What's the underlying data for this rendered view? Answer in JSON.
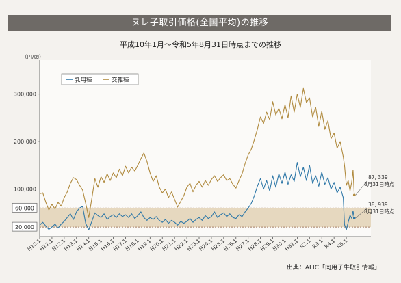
{
  "header": {
    "title": "ヌレ子取引価格(全国平均)の推移",
    "subtitle": "平成10年1月～令和5年8月31日時点までの推移"
  },
  "footer": {
    "source": "出典：ALIC「肉用子牛取引情報」"
  },
  "colors": {
    "nyuyoshu": "#2f78a8",
    "kozasshu": "#b08a3e",
    "band_fill": "#e6d8bf",
    "band_line": "#8a5a3a"
  },
  "chart_data": {
    "type": "line",
    "ylabel": "（円/頭）",
    "ylim": [
      0,
      360000
    ],
    "yticks": [
      {
        "value": 300000,
        "label": "300,000"
      },
      {
        "value": 200000,
        "label": "200,000"
      },
      {
        "value": 100000,
        "label": "100,000"
      }
    ],
    "boxed_yticks": [
      {
        "value": 60000,
        "label": "60,000"
      },
      {
        "value": 20000,
        "label": "20,000"
      }
    ],
    "band": {
      "from": 20000,
      "to": 60000
    },
    "xlim": [
      1998.0,
      2024.0
    ],
    "x_ticks": [
      {
        "x": 1998.0,
        "label": "H10.1"
      },
      {
        "x": 1999.0,
        "label": "H11.1"
      },
      {
        "x": 2000.0,
        "label": "H12.1"
      },
      {
        "x": 2001.0,
        "label": "H13.1"
      },
      {
        "x": 2002.0,
        "label": "H14.1"
      },
      {
        "x": 2003.0,
        "label": "H15.1"
      },
      {
        "x": 2004.0,
        "label": "H16.1"
      },
      {
        "x": 2005.0,
        "label": "H17.1"
      },
      {
        "x": 2006.0,
        "label": "H18.1"
      },
      {
        "x": 2007.0,
        "label": "H19.1"
      },
      {
        "x": 2008.0,
        "label": "H20.1"
      },
      {
        "x": 2009.0,
        "label": "H21.1"
      },
      {
        "x": 2010.0,
        "label": "H22.1"
      },
      {
        "x": 2011.0,
        "label": "H23.1"
      },
      {
        "x": 2012.0,
        "label": "H24.1"
      },
      {
        "x": 2013.0,
        "label": "H25.1"
      },
      {
        "x": 2014.0,
        "label": "H26.1"
      },
      {
        "x": 2015.0,
        "label": "H27.1"
      },
      {
        "x": 2016.0,
        "label": "H28.1"
      },
      {
        "x": 2017.0,
        "label": "H29.1"
      },
      {
        "x": 2018.0,
        "label": "H30.1"
      },
      {
        "x": 2019.0,
        "label": "H31.1"
      },
      {
        "x": 2020.0,
        "label": "R2.1"
      },
      {
        "x": 2021.0,
        "label": "R3.1"
      },
      {
        "x": 2022.0,
        "label": "R4.1"
      },
      {
        "x": 2023.0,
        "label": "R5.1"
      }
    ],
    "legend": {
      "position": "top-left"
    },
    "series": [
      {
        "name": "乳用種",
        "points": [
          [
            1998.0,
            24000
          ],
          [
            1998.25,
            30000
          ],
          [
            1998.5,
            22000
          ],
          [
            1998.75,
            15000
          ],
          [
            1999.0,
            20000
          ],
          [
            1999.25,
            26000
          ],
          [
            1999.5,
            18000
          ],
          [
            1999.75,
            26000
          ],
          [
            2000.0,
            32000
          ],
          [
            2000.25,
            40000
          ],
          [
            2000.5,
            48000
          ],
          [
            2000.75,
            36000
          ],
          [
            2001.0,
            52000
          ],
          [
            2001.25,
            60000
          ],
          [
            2001.5,
            64000
          ],
          [
            2001.75,
            28000
          ],
          [
            2002.0,
            14000
          ],
          [
            2002.25,
            32000
          ],
          [
            2002.5,
            50000
          ],
          [
            2002.75,
            44000
          ],
          [
            2003.0,
            40000
          ],
          [
            2003.25,
            48000
          ],
          [
            2003.5,
            36000
          ],
          [
            2003.75,
            42000
          ],
          [
            2004.0,
            46000
          ],
          [
            2004.25,
            40000
          ],
          [
            2004.5,
            48000
          ],
          [
            2004.75,
            42000
          ],
          [
            2005.0,
            46000
          ],
          [
            2005.25,
            40000
          ],
          [
            2005.5,
            48000
          ],
          [
            2005.75,
            38000
          ],
          [
            2006.0,
            44000
          ],
          [
            2006.25,
            52000
          ],
          [
            2006.5,
            40000
          ],
          [
            2006.75,
            34000
          ],
          [
            2007.0,
            40000
          ],
          [
            2007.25,
            36000
          ],
          [
            2007.5,
            42000
          ],
          [
            2007.75,
            34000
          ],
          [
            2008.0,
            30000
          ],
          [
            2008.25,
            36000
          ],
          [
            2008.5,
            28000
          ],
          [
            2008.75,
            34000
          ],
          [
            2009.0,
            30000
          ],
          [
            2009.25,
            24000
          ],
          [
            2009.5,
            32000
          ],
          [
            2009.75,
            28000
          ],
          [
            2010.0,
            32000
          ],
          [
            2010.25,
            38000
          ],
          [
            2010.5,
            30000
          ],
          [
            2010.75,
            36000
          ],
          [
            2011.0,
            40000
          ],
          [
            2011.25,
            34000
          ],
          [
            2011.5,
            44000
          ],
          [
            2011.75,
            38000
          ],
          [
            2012.0,
            42000
          ],
          [
            2012.25,
            52000
          ],
          [
            2012.5,
            40000
          ],
          [
            2012.75,
            46000
          ],
          [
            2013.0,
            50000
          ],
          [
            2013.25,
            42000
          ],
          [
            2013.5,
            48000
          ],
          [
            2013.75,
            40000
          ],
          [
            2014.0,
            38000
          ],
          [
            2014.25,
            46000
          ],
          [
            2014.5,
            42000
          ],
          [
            2014.75,
            52000
          ],
          [
            2015.0,
            60000
          ],
          [
            2015.25,
            70000
          ],
          [
            2015.5,
            86000
          ],
          [
            2015.75,
            106000
          ],
          [
            2016.0,
            122000
          ],
          [
            2016.25,
            100000
          ],
          [
            2016.5,
            118000
          ],
          [
            2016.75,
            96000
          ],
          [
            2017.0,
            128000
          ],
          [
            2017.25,
            104000
          ],
          [
            2017.5,
            132000
          ],
          [
            2017.75,
            112000
          ],
          [
            2018.0,
            136000
          ],
          [
            2018.25,
            110000
          ],
          [
            2018.5,
            130000
          ],
          [
            2018.75,
            116000
          ],
          [
            2019.0,
            156000
          ],
          [
            2019.25,
            126000
          ],
          [
            2019.5,
            146000
          ],
          [
            2019.75,
            118000
          ],
          [
            2020.0,
            150000
          ],
          [
            2020.25,
            112000
          ],
          [
            2020.5,
            128000
          ],
          [
            2020.75,
            106000
          ],
          [
            2021.0,
            136000
          ],
          [
            2021.25,
            110000
          ],
          [
            2021.5,
            124000
          ],
          [
            2021.75,
            100000
          ],
          [
            2022.0,
            114000
          ],
          [
            2022.25,
            92000
          ],
          [
            2022.5,
            104000
          ],
          [
            2022.75,
            82000
          ],
          [
            2022.85,
            25000
          ],
          [
            2023.0,
            14000
          ],
          [
            2023.15,
            30000
          ],
          [
            2023.3,
            45000
          ],
          [
            2023.45,
            38000
          ],
          [
            2023.55,
            54000
          ],
          [
            2023.65,
            38939
          ]
        ]
      },
      {
        "name": "交雑種",
        "points": [
          [
            1998.0,
            90000
          ],
          [
            1998.25,
            92000
          ],
          [
            1998.5,
            72000
          ],
          [
            1998.75,
            56000
          ],
          [
            1999.0,
            68000
          ],
          [
            1999.25,
            58000
          ],
          [
            1999.5,
            72000
          ],
          [
            1999.75,
            64000
          ],
          [
            2000.0,
            82000
          ],
          [
            2000.25,
            94000
          ],
          [
            2000.5,
            112000
          ],
          [
            2000.75,
            124000
          ],
          [
            2001.0,
            120000
          ],
          [
            2001.25,
            108000
          ],
          [
            2001.5,
            98000
          ],
          [
            2001.75,
            70000
          ],
          [
            2002.0,
            40000
          ],
          [
            2002.25,
            80000
          ],
          [
            2002.5,
            122000
          ],
          [
            2002.75,
            104000
          ],
          [
            2003.0,
            126000
          ],
          [
            2003.25,
            114000
          ],
          [
            2003.5,
            132000
          ],
          [
            2003.75,
            118000
          ],
          [
            2004.0,
            134000
          ],
          [
            2004.25,
            124000
          ],
          [
            2004.5,
            142000
          ],
          [
            2004.75,
            128000
          ],
          [
            2005.0,
            148000
          ],
          [
            2005.25,
            134000
          ],
          [
            2005.5,
            146000
          ],
          [
            2005.75,
            138000
          ],
          [
            2006.0,
            150000
          ],
          [
            2006.25,
            164000
          ],
          [
            2006.5,
            176000
          ],
          [
            2006.75,
            158000
          ],
          [
            2007.0,
            134000
          ],
          [
            2007.25,
            116000
          ],
          [
            2007.5,
            128000
          ],
          [
            2007.75,
            104000
          ],
          [
            2008.0,
            92000
          ],
          [
            2008.25,
            100000
          ],
          [
            2008.5,
            82000
          ],
          [
            2008.75,
            94000
          ],
          [
            2009.0,
            78000
          ],
          [
            2009.25,
            62000
          ],
          [
            2009.5,
            74000
          ],
          [
            2009.75,
            86000
          ],
          [
            2010.0,
            104000
          ],
          [
            2010.25,
            112000
          ],
          [
            2010.5,
            94000
          ],
          [
            2010.75,
            108000
          ],
          [
            2011.0,
            116000
          ],
          [
            2011.25,
            104000
          ],
          [
            2011.5,
            118000
          ],
          [
            2011.75,
            108000
          ],
          [
            2012.0,
            120000
          ],
          [
            2012.25,
            128000
          ],
          [
            2012.5,
            116000
          ],
          [
            2012.75,
            124000
          ],
          [
            2013.0,
            130000
          ],
          [
            2013.25,
            118000
          ],
          [
            2013.5,
            122000
          ],
          [
            2013.75,
            110000
          ],
          [
            2014.0,
            102000
          ],
          [
            2014.25,
            118000
          ],
          [
            2014.5,
            132000
          ],
          [
            2014.75,
            154000
          ],
          [
            2015.0,
            172000
          ],
          [
            2015.25,
            184000
          ],
          [
            2015.5,
            204000
          ],
          [
            2015.75,
            226000
          ],
          [
            2016.0,
            252000
          ],
          [
            2016.25,
            238000
          ],
          [
            2016.5,
            262000
          ],
          [
            2016.75,
            246000
          ],
          [
            2017.0,
            284000
          ],
          [
            2017.25,
            256000
          ],
          [
            2017.5,
            270000
          ],
          [
            2017.75,
            248000
          ],
          [
            2018.0,
            278000
          ],
          [
            2018.25,
            250000
          ],
          [
            2018.5,
            296000
          ],
          [
            2018.75,
            262000
          ],
          [
            2019.0,
            300000
          ],
          [
            2019.25,
            272000
          ],
          [
            2019.5,
            312000
          ],
          [
            2019.75,
            282000
          ],
          [
            2020.0,
            292000
          ],
          [
            2020.25,
            252000
          ],
          [
            2020.5,
            272000
          ],
          [
            2020.75,
            232000
          ],
          [
            2021.0,
            264000
          ],
          [
            2021.25,
            226000
          ],
          [
            2021.5,
            244000
          ],
          [
            2021.75,
            206000
          ],
          [
            2022.0,
            218000
          ],
          [
            2022.25,
            186000
          ],
          [
            2022.5,
            200000
          ],
          [
            2022.75,
            168000
          ],
          [
            2022.85,
            150000
          ],
          [
            2023.0,
            108000
          ],
          [
            2023.15,
            118000
          ],
          [
            2023.3,
            96000
          ],
          [
            2023.45,
            116000
          ],
          [
            2023.55,
            140000
          ],
          [
            2023.65,
            87339
          ]
        ]
      }
    ],
    "annotations": [
      {
        "series": "交雑種",
        "x": 2023.65,
        "value": "87, 339",
        "note": "8月31日時点"
      },
      {
        "series": "乳用種",
        "x": 2023.65,
        "value": "38, 939",
        "note": "8月31日時点"
      }
    ]
  }
}
